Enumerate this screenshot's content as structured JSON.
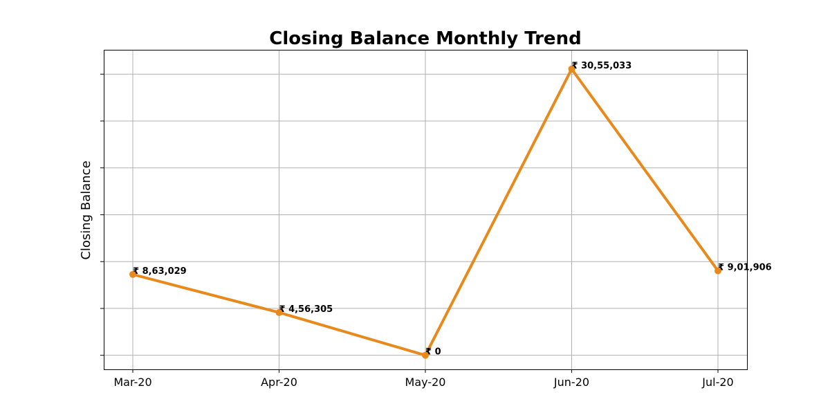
{
  "chart_data": {
    "type": "line",
    "title": "Closing Balance Monthly Trend",
    "xlabel": "",
    "ylabel": "Closing Balance",
    "categories": [
      "Mar-20",
      "Apr-20",
      "May-20",
      "Jun-20",
      "Jul-20"
    ],
    "series": [
      {
        "values": [
          863029,
          456305,
          0,
          3055033,
          901906
        ],
        "data_labels": [
          "₹ 8,63,029",
          "₹ 4,56,305",
          "₹ 0",
          "₹ 30,55,033",
          "₹ 9,01,906"
        ],
        "color": "#e8891c"
      }
    ],
    "ylim": [
      -150000,
      3260000
    ],
    "y_ticks": [
      0,
      500000,
      1000000,
      1500000,
      2000000,
      2500000,
      3000000
    ],
    "y_tick_labels_visible": false,
    "grid": true,
    "legend": false
  }
}
